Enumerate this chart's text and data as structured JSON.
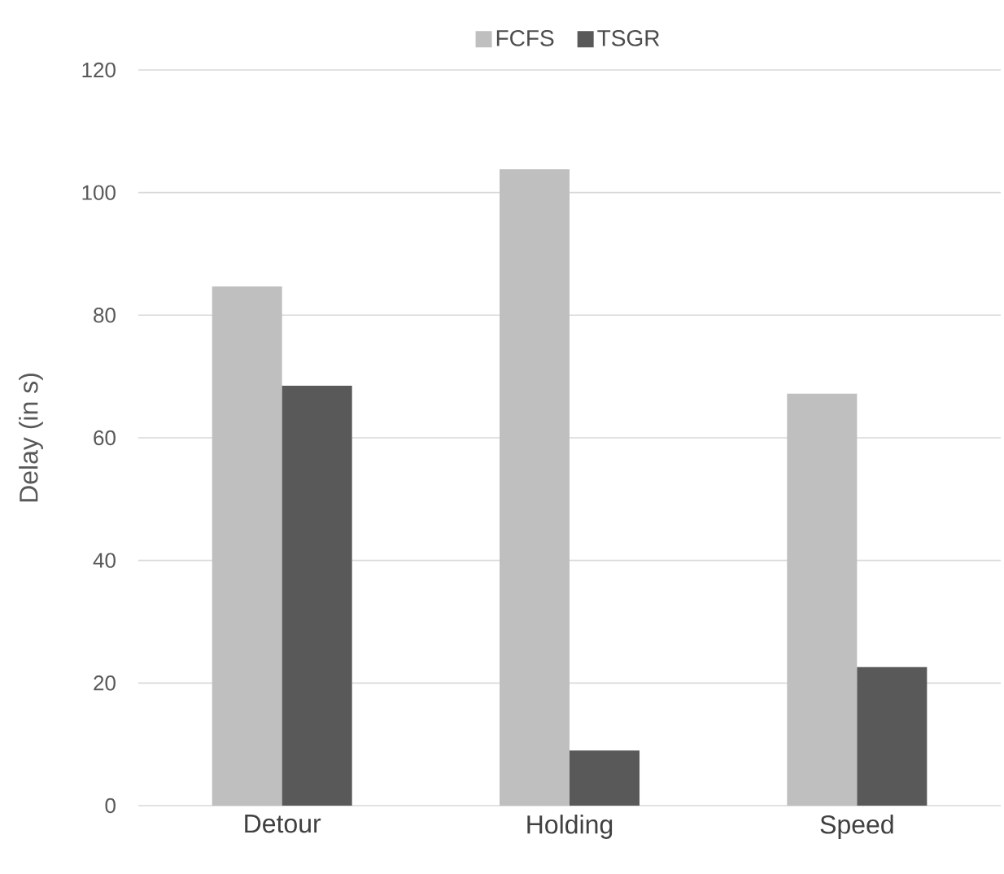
{
  "chart_data": {
    "type": "bar",
    "ylabel": "Delay (in s)",
    "categories": [
      "Detour",
      "Holding",
      "Speed"
    ],
    "series": [
      {
        "name": "FCFS",
        "color": "#bfbfbf",
        "values": [
          84.7,
          103.8,
          67.2
        ]
      },
      {
        "name": "TSGR",
        "color": "#595959",
        "values": [
          68.5,
          9.0,
          22.6
        ]
      }
    ],
    "ylim": [
      0,
      120
    ],
    "yticks": [
      0,
      20,
      40,
      60,
      80,
      100,
      120
    ],
    "grid": "y",
    "legend": "top"
  }
}
